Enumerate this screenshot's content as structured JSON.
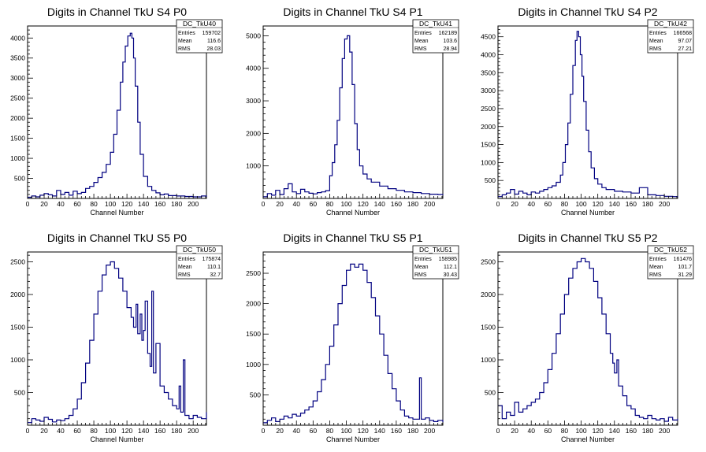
{
  "chart_data": [
    {
      "type": "histogram",
      "title": "Digits in Channel TkU S4 P0",
      "xlabel": "Channel Number",
      "xlim": [
        0,
        216
      ],
      "ylim": [
        0,
        4300
      ],
      "xticks": [
        0,
        20,
        40,
        60,
        80,
        100,
        120,
        140,
        160,
        180,
        200
      ],
      "yticks": [
        500,
        1000,
        1500,
        2000,
        2500,
        3000,
        3500,
        4000
      ],
      "stats": {
        "name": "DC_TkU40",
        "entries": "159702",
        "mean": "116.6",
        "rms": "28.03"
      },
      "x": [
        0,
        5,
        10,
        15,
        20,
        25,
        30,
        35,
        40,
        45,
        50,
        55,
        60,
        65,
        70,
        75,
        80,
        85,
        90,
        95,
        100,
        104,
        108,
        112,
        115,
        118,
        121,
        124,
        126,
        128,
        130,
        133,
        136,
        140,
        145,
        150,
        155,
        160,
        165,
        170,
        180,
        190,
        200,
        210,
        216
      ],
      "values": [
        30,
        60,
        40,
        80,
        120,
        90,
        60,
        200,
        100,
        150,
        80,
        180,
        120,
        150,
        250,
        300,
        400,
        520,
        650,
        850,
        1150,
        1600,
        2200,
        2900,
        3400,
        3800,
        4050,
        4120,
        4000,
        3500,
        2800,
        1900,
        1100,
        550,
        300,
        200,
        140,
        90,
        110,
        70,
        60,
        50,
        40,
        60,
        40
      ]
    },
    {
      "type": "histogram",
      "title": "Digits in Channel TkU S4 P1",
      "xlabel": "Channel Number",
      "xlim": [
        0,
        216
      ],
      "ylim": [
        0,
        5300
      ],
      "xticks": [
        0,
        20,
        40,
        60,
        80,
        100,
        120,
        140,
        160,
        180,
        200
      ],
      "yticks": [
        1000,
        2000,
        3000,
        4000,
        5000
      ],
      "stats": {
        "name": "DC_TkU41",
        "entries": "162189",
        "mean": "103.6",
        "rms": "28.94"
      },
      "x": [
        0,
        5,
        10,
        15,
        20,
        25,
        30,
        35,
        40,
        45,
        50,
        55,
        60,
        65,
        70,
        75,
        80,
        83,
        86,
        89,
        92,
        95,
        98,
        101,
        104,
        107,
        110,
        113,
        116,
        120,
        125,
        130,
        140,
        150,
        160,
        170,
        180,
        190,
        200,
        210,
        216
      ],
      "values": [
        50,
        150,
        100,
        250,
        120,
        300,
        450,
        200,
        150,
        280,
        200,
        160,
        140,
        180,
        200,
        240,
        700,
        1100,
        1650,
        2400,
        3400,
        4300,
        4900,
        5000,
        4500,
        3500,
        2300,
        1500,
        1000,
        750,
        600,
        500,
        380,
        300,
        250,
        200,
        180,
        150,
        130,
        120,
        100
      ]
    },
    {
      "type": "histogram",
      "title": "Digits in Channel TkU S4 P2",
      "xlabel": "Channel Number",
      "xlim": [
        0,
        216
      ],
      "ylim": [
        0,
        4800
      ],
      "xticks": [
        0,
        20,
        40,
        60,
        80,
        100,
        120,
        140,
        160,
        180,
        200
      ],
      "yticks": [
        500,
        1000,
        1500,
        2000,
        2500,
        3000,
        3500,
        4000,
        4500
      ],
      "stats": {
        "name": "DC_TkU42",
        "entries": "166568",
        "mean": "97.07",
        "rms": "27.21"
      },
      "x": [
        0,
        5,
        10,
        15,
        20,
        25,
        30,
        35,
        40,
        45,
        50,
        55,
        60,
        65,
        70,
        75,
        78,
        81,
        84,
        87,
        90,
        93,
        95,
        97,
        99,
        101,
        103,
        106,
        109,
        112,
        116,
        120,
        125,
        130,
        140,
        150,
        160,
        170,
        180,
        190,
        200,
        210,
        216
      ],
      "values": [
        50,
        100,
        150,
        250,
        120,
        200,
        150,
        100,
        180,
        150,
        200,
        250,
        300,
        350,
        450,
        650,
        1000,
        1500,
        2100,
        2900,
        3700,
        4400,
        4650,
        4500,
        4000,
        3400,
        2700,
        1900,
        1300,
        850,
        550,
        400,
        300,
        250,
        200,
        180,
        150,
        300,
        100,
        80,
        60,
        50,
        40
      ]
    },
    {
      "type": "histogram",
      "title": "Digits in Channel TkU S5 P0",
      "xlabel": "Channel Number",
      "xlim": [
        0,
        216
      ],
      "ylim": [
        0,
        2650
      ],
      "xticks": [
        0,
        20,
        40,
        60,
        80,
        100,
        120,
        140,
        160,
        180,
        200
      ],
      "yticks": [
        500,
        1000,
        1500,
        2000,
        2500
      ],
      "stats": {
        "name": "DC_TkU50",
        "entries": "175874",
        "mean": "110.1",
        "rms": "32.7"
      },
      "x": [
        0,
        5,
        10,
        15,
        20,
        25,
        30,
        35,
        40,
        45,
        50,
        55,
        60,
        65,
        70,
        75,
        80,
        85,
        90,
        95,
        100,
        105,
        110,
        115,
        120,
        125,
        128,
        131,
        133,
        136,
        138,
        140,
        142,
        145,
        148,
        150,
        152,
        155,
        160,
        165,
        170,
        175,
        180,
        183,
        185,
        188,
        190,
        195,
        200,
        205,
        210,
        216
      ],
      "values": [
        40,
        100,
        80,
        60,
        120,
        90,
        50,
        80,
        70,
        100,
        150,
        250,
        400,
        650,
        950,
        1300,
        1700,
        2050,
        2300,
        2450,
        2500,
        2400,
        2250,
        2050,
        1800,
        1650,
        1500,
        1850,
        1400,
        1700,
        1300,
        1450,
        1900,
        1100,
        900,
        2050,
        800,
        1250,
        600,
        500,
        400,
        300,
        250,
        600,
        200,
        1000,
        150,
        100,
        150,
        120,
        100,
        200
      ]
    },
    {
      "type": "histogram",
      "title": "Digits in Channel TkU S5 P1",
      "xlabel": "Channel Number",
      "xlim": [
        0,
        216
      ],
      "ylim": [
        0,
        2850
      ],
      "xticks": [
        0,
        20,
        40,
        60,
        80,
        100,
        120,
        140,
        160,
        180,
        200
      ],
      "yticks": [
        500,
        1000,
        1500,
        2000,
        2500
      ],
      "stats": {
        "name": "DC_TkU51",
        "entries": "158985",
        "mean": "112.1",
        "rms": "30.43"
      },
      "x": [
        0,
        5,
        10,
        15,
        20,
        25,
        30,
        35,
        40,
        45,
        50,
        55,
        60,
        65,
        70,
        75,
        80,
        85,
        90,
        95,
        100,
        105,
        110,
        115,
        120,
        125,
        130,
        135,
        140,
        145,
        150,
        155,
        160,
        165,
        170,
        175,
        180,
        185,
        188,
        190,
        195,
        200,
        205,
        210,
        216
      ],
      "values": [
        40,
        80,
        120,
        60,
        100,
        150,
        120,
        180,
        150,
        200,
        250,
        300,
        400,
        550,
        750,
        1000,
        1300,
        1650,
        2000,
        2300,
        2550,
        2650,
        2600,
        2650,
        2550,
        2350,
        2100,
        1800,
        1500,
        1150,
        850,
        600,
        400,
        250,
        150,
        120,
        100,
        100,
        780,
        100,
        120,
        80,
        60,
        80,
        50
      ]
    },
    {
      "type": "histogram",
      "title": "Digits in Channel TkU S5 P2",
      "xlabel": "Channel Number",
      "xlim": [
        0,
        216
      ],
      "ylim": [
        0,
        2650
      ],
      "xticks": [
        0,
        20,
        40,
        60,
        80,
        100,
        120,
        140,
        160,
        180,
        200
      ],
      "yticks": [
        500,
        1000,
        1500,
        2000,
        2500
      ],
      "stats": {
        "name": "DC_TkU52",
        "entries": "161476",
        "mean": "101.7",
        "rms": "31.29"
      },
      "x": [
        0,
        5,
        10,
        15,
        20,
        25,
        30,
        35,
        40,
        45,
        50,
        55,
        60,
        65,
        70,
        75,
        80,
        85,
        90,
        95,
        100,
        105,
        110,
        115,
        120,
        125,
        130,
        135,
        138,
        140,
        143,
        145,
        150,
        155,
        160,
        165,
        170,
        175,
        180,
        185,
        190,
        195,
        200,
        205,
        210,
        216
      ],
      "values": [
        300,
        100,
        200,
        150,
        350,
        200,
        250,
        300,
        350,
        400,
        500,
        650,
        850,
        1100,
        1400,
        1700,
        2000,
        2250,
        2400,
        2500,
        2550,
        2500,
        2400,
        2200,
        1950,
        1700,
        1400,
        1100,
        950,
        800,
        1000,
        600,
        450,
        300,
        250,
        150,
        120,
        100,
        150,
        100,
        80,
        100,
        60,
        120,
        80,
        100
      ]
    }
  ]
}
